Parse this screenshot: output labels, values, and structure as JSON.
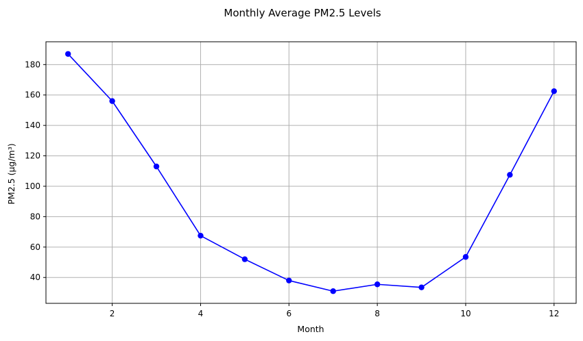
{
  "chart_data": {
    "type": "line",
    "title": "Monthly Average PM2.5 Levels",
    "xlabel": "Month",
    "ylabel": "PM2.5 (µg/m³)",
    "xlim": [
      0.5,
      12.5
    ],
    "ylim": [
      23,
      195
    ],
    "xticks": [
      2,
      4,
      6,
      8,
      10,
      12
    ],
    "yticks": [
      40,
      60,
      80,
      100,
      120,
      140,
      160,
      180
    ],
    "grid": true,
    "series": [
      {
        "name": "PM2.5",
        "color": "#0000ff",
        "marker": "circle",
        "x": [
          1,
          2,
          3,
          4,
          5,
          6,
          7,
          8,
          9,
          10,
          11,
          12
        ],
        "values": [
          187,
          156,
          113,
          67.5,
          52,
          38,
          31,
          35.5,
          33.5,
          53.5,
          107.5,
          162.5
        ]
      }
    ]
  }
}
